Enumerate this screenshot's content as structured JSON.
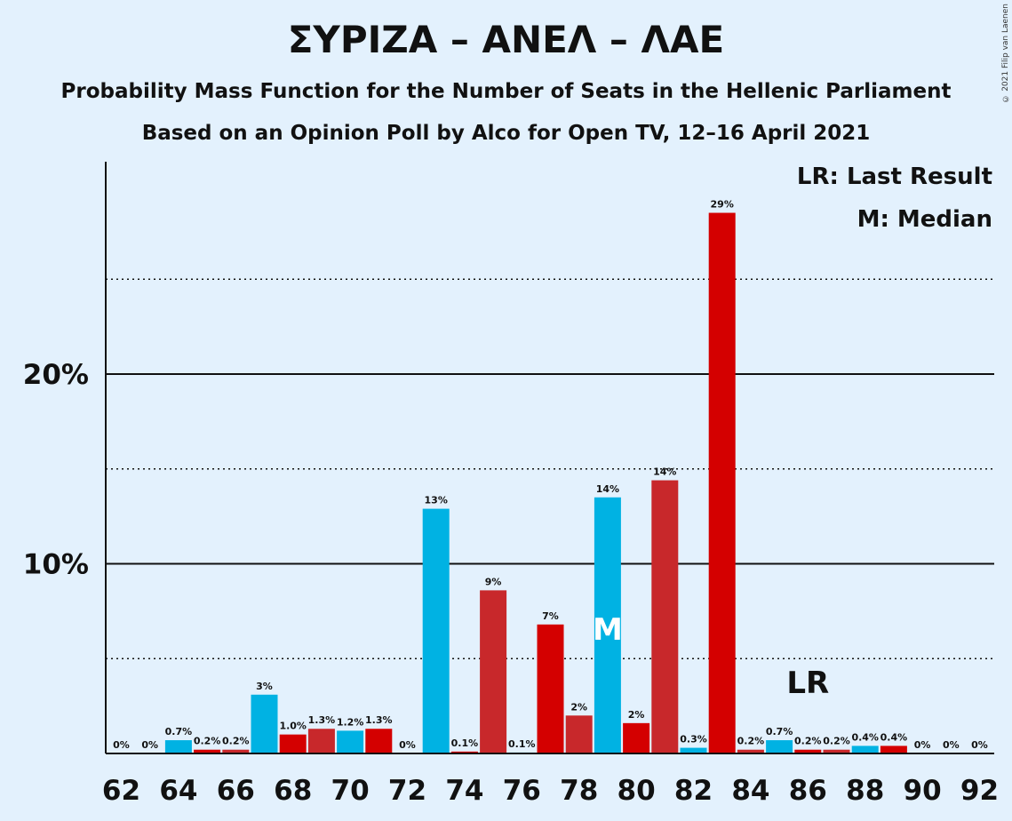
{
  "title": "ΣΥΡΙΖΑ – ΑΝΕΛ – ΛΑΕ",
  "subtitle1": "Probability Mass Function for the Number of Seats in the Hellenic Parliament",
  "subtitle2": "Based on an Opinion Poll by Alco for Open TV, 12–16 April 2021",
  "copyright": "© 2021 Filip van Laenen",
  "legend": {
    "lr": "LR: Last Result",
    "median": "M: Median"
  },
  "markers": {
    "median_text": "M",
    "median_seat": 79,
    "lr_text": "LR",
    "lr_seat": 86
  },
  "colors": {
    "blue": "#00b2e3",
    "red": "#d40000",
    "dark_red": "#c8282b",
    "background": "#e3f1fd"
  },
  "chart_data": {
    "type": "bar",
    "xlabel": "",
    "ylabel": "",
    "ylim": [
      0,
      31
    ],
    "y_ticks": [
      {
        "value": 10,
        "label": "10%"
      },
      {
        "value": 20,
        "label": "20%"
      }
    ],
    "y_dotted": [
      5,
      15,
      25
    ],
    "x_ticks": [
      62,
      64,
      66,
      68,
      70,
      72,
      74,
      76,
      78,
      80,
      82,
      84,
      86,
      88,
      90,
      92
    ],
    "bars": [
      {
        "x": 62,
        "value": 0,
        "label": "0%",
        "color": "blue"
      },
      {
        "x": 63,
        "value": 0,
        "label": "0%",
        "color": "red"
      },
      {
        "x": 64,
        "value": 0.7,
        "label": "0.7%",
        "color": "blue"
      },
      {
        "x": 65,
        "value": 0.2,
        "label": "0.2%",
        "color": "red"
      },
      {
        "x": 66,
        "value": 0.2,
        "label": "0.2%",
        "color": "dark_red"
      },
      {
        "x": 67,
        "value": 3.1,
        "label": "3%",
        "color": "blue"
      },
      {
        "x": 68,
        "value": 1.0,
        "label": "1.0%",
        "color": "red"
      },
      {
        "x": 69,
        "value": 1.3,
        "label": "1.3%",
        "color": "dark_red"
      },
      {
        "x": 70,
        "value": 1.2,
        "label": "1.2%",
        "color": "blue"
      },
      {
        "x": 71,
        "value": 1.3,
        "label": "1.3%",
        "color": "red"
      },
      {
        "x": 72,
        "value": 0,
        "label": "0%",
        "color": "dark_red"
      },
      {
        "x": 73,
        "value": 12.9,
        "label": "13%",
        "color": "blue"
      },
      {
        "x": 74,
        "value": 0.1,
        "label": "0.1%",
        "color": "red"
      },
      {
        "x": 75,
        "value": 8.6,
        "label": "9%",
        "color": "dark_red"
      },
      {
        "x": 76,
        "value": 0.05,
        "label": "0.1%",
        "color": "blue"
      },
      {
        "x": 77,
        "value": 6.8,
        "label": "7%",
        "color": "red"
      },
      {
        "x": 78,
        "value": 2.0,
        "label": "2%",
        "color": "dark_red"
      },
      {
        "x": 79,
        "value": 13.5,
        "label": "14%",
        "color": "blue"
      },
      {
        "x": 80,
        "value": 1.6,
        "label": "2%",
        "color": "red"
      },
      {
        "x": 81,
        "value": 14.4,
        "label": "14%",
        "color": "dark_red"
      },
      {
        "x": 82,
        "value": 0.3,
        "label": "0.3%",
        "color": "blue"
      },
      {
        "x": 83,
        "value": 28.5,
        "label": "29%",
        "color": "red"
      },
      {
        "x": 84,
        "value": 0.2,
        "label": "0.2%",
        "color": "dark_red"
      },
      {
        "x": 85,
        "value": 0.7,
        "label": "0.7%",
        "color": "blue"
      },
      {
        "x": 86,
        "value": 0.2,
        "label": "0.2%",
        "color": "red"
      },
      {
        "x": 87,
        "value": 0.2,
        "label": "0.2%",
        "color": "dark_red"
      },
      {
        "x": 88,
        "value": 0.4,
        "label": "0.4%",
        "color": "blue"
      },
      {
        "x": 89,
        "value": 0.4,
        "label": "0.4%",
        "color": "red"
      },
      {
        "x": 90,
        "value": 0,
        "label": "0%",
        "color": "dark_red"
      },
      {
        "x": 91,
        "value": 0,
        "label": "0%",
        "color": "blue"
      },
      {
        "x": 92,
        "value": 0,
        "label": "0%",
        "color": "red"
      }
    ]
  }
}
